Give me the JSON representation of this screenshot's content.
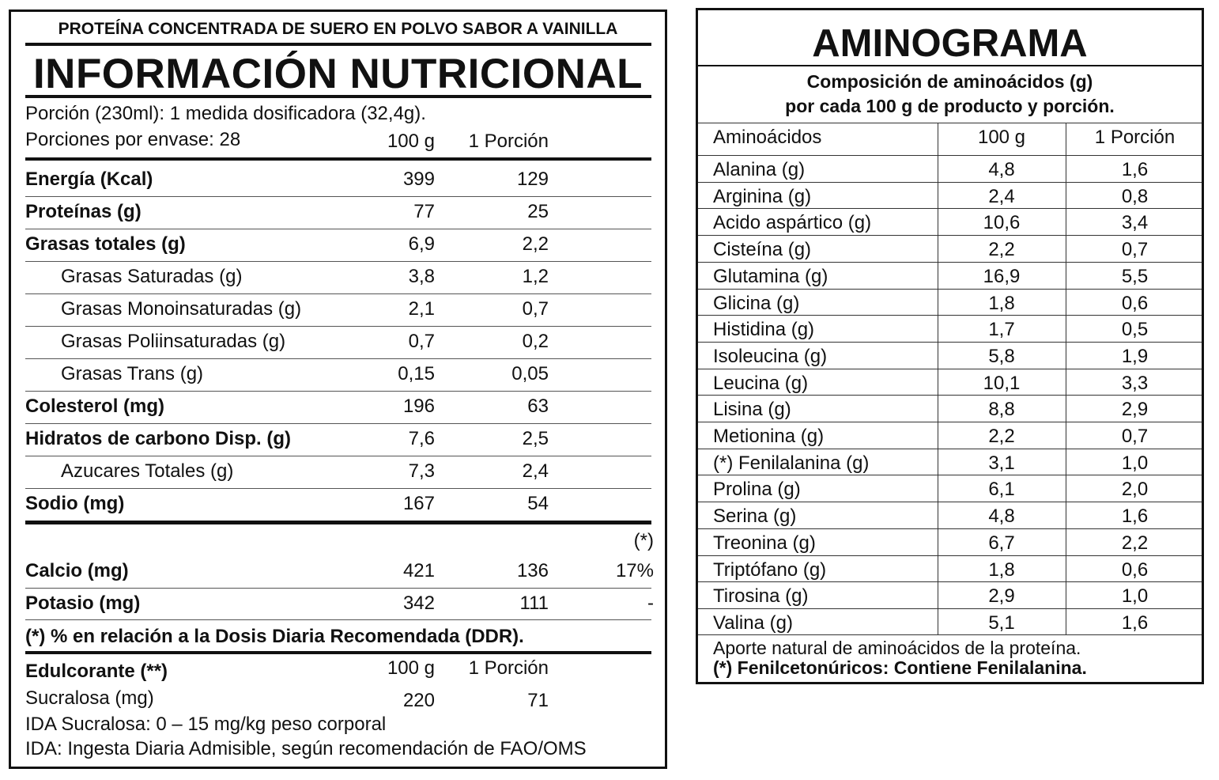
{
  "nutrition": {
    "subtitle": "PROTEÍNA CONCENTRADA DE SUERO EN POLVO SABOR A VAINILLA",
    "title": "INFORMACIÓN NUTRICIONAL",
    "portion": "Porción (230ml): 1 medida dosificadora (32,4g).",
    "servings": "Porciones por envase: 28",
    "col_100g": "100 g",
    "col_portion": "1 Porción",
    "rows": [
      {
        "name": "Energía (Kcal)",
        "v100": "399",
        "vpor": "129"
      },
      {
        "name": "Proteínas (g)",
        "v100": "77",
        "vpor": "25"
      },
      {
        "name": "Grasas totales (g)",
        "v100": "6,9",
        "vpor": "2,2"
      },
      {
        "name": "Grasas Saturadas (g)",
        "v100": "3,8",
        "vpor": "1,2"
      },
      {
        "name": "Grasas Monoinsaturadas (g)",
        "v100": "2,1",
        "vpor": "0,7"
      },
      {
        "name": "Grasas Poliinsaturadas (g)",
        "v100": "0,7",
        "vpor": "0,2"
      },
      {
        "name": "Grasas Trans (g)",
        "v100": "0,15",
        "vpor": "0,05"
      },
      {
        "name": "Colesterol (mg)",
        "v100": "196",
        "vpor": "63"
      },
      {
        "name": "Hidratos de carbono Disp. (g)",
        "v100": "7,6",
        "vpor": "2,5"
      },
      {
        "name": "Azucares Totales (g)",
        "v100": "7,3",
        "vpor": "2,4"
      },
      {
        "name": "Sodio (mg)",
        "v100": "167",
        "vpor": "54"
      }
    ],
    "ddr_mark": "(*)",
    "minerals": [
      {
        "name": "Calcio (mg)",
        "v100": "421",
        "vpor": "136",
        "ddr": "17%"
      },
      {
        "name": "Potasio (mg)",
        "v100": "342",
        "vpor": "111",
        "ddr": "-"
      }
    ],
    "ddr_note": "(*) % en relación a la Dosis Diaria Recomendada (DDR).",
    "sweetener": {
      "title": "Edulcorante (**)",
      "col_100g": "100 g",
      "col_portion": "1 Porción",
      "name": "Sucralosa (mg)",
      "v100": "220",
      "vpor": "71",
      "ida": "IDA Sucralosa: 0 – 15 mg/kg peso corporal",
      "ida_def": "IDA: Ingesta Diaria Admisible, según recomendación de FAO/OMS"
    }
  },
  "amino": {
    "title": "AMINOGRAMA",
    "composition_line1": "Composición de aminoácidos (g)",
    "composition_line2": "por cada 100 g de producto y porción.",
    "header": {
      "name": "Aminoácidos",
      "v100": "100 g",
      "vpor": "1 Porción"
    },
    "rows": [
      {
        "name": "Alanina (g)",
        "v100": "4,8",
        "vpor": "1,6"
      },
      {
        "name": "Arginina (g)",
        "v100": "2,4",
        "vpor": "0,8"
      },
      {
        "name": "Acido aspártico (g)",
        "v100": "10,6",
        "vpor": "3,4"
      },
      {
        "name": "Cisteína (g)",
        "v100": "2,2",
        "vpor": "0,7"
      },
      {
        "name": "Glutamina (g)",
        "v100": "16,9",
        "vpor": "5,5"
      },
      {
        "name": "Glicina (g)",
        "v100": "1,8",
        "vpor": "0,6"
      },
      {
        "name": "Histidina (g)",
        "v100": "1,7",
        "vpor": "0,5"
      },
      {
        "name": "Isoleucina (g)",
        "v100": "5,8",
        "vpor": "1,9"
      },
      {
        "name": "Leucina (g)",
        "v100": "10,1",
        "vpor": "3,3"
      },
      {
        "name": "Lisina (g)",
        "v100": "8,8",
        "vpor": "2,9"
      },
      {
        "name": "Metionina (g)",
        "v100": "2,2",
        "vpor": "0,7"
      },
      {
        "name": "(*) Fenilalanina (g)",
        "v100": "3,1",
        "vpor": "1,0"
      },
      {
        "name": "Prolina (g)",
        "v100": "6,1",
        "vpor": "2,0"
      },
      {
        "name": "Serina (g)",
        "v100": "4,8",
        "vpor": "1,6"
      },
      {
        "name": "Treonina (g)",
        "v100": "6,7",
        "vpor": "2,2"
      },
      {
        "name": "Triptófano (g)",
        "v100": "1,8",
        "vpor": "0,6"
      },
      {
        "name": "Tirosina (g)",
        "v100": "2,9",
        "vpor": "1,0"
      },
      {
        "name": "Valina (g)",
        "v100": "5,1",
        "vpor": "1,6"
      }
    ],
    "footer_line1": "Aporte natural de aminoácidos de la proteína.",
    "footer_line2": "(*) Fenilcetonúricos: Contiene Fenilalanina."
  }
}
